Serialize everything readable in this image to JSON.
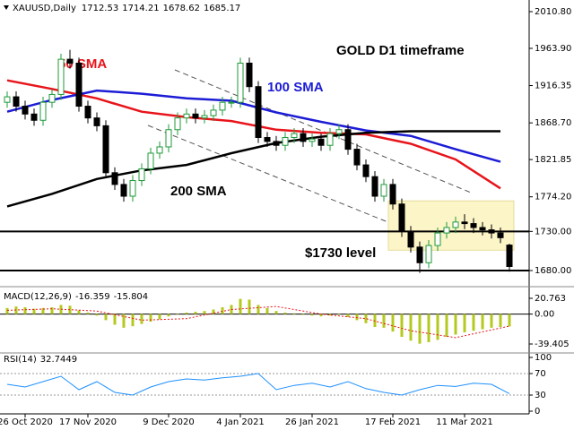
{
  "chart_data": [
    {
      "type": "candlestick",
      "symbol": "XAUUSD,Daily",
      "open": [
        1895,
        1902,
        1890,
        1880,
        1872,
        1895,
        1905,
        1950,
        1945,
        1890,
        1875,
        1865,
        1805,
        1790,
        1775,
        1795,
        1810,
        1830,
        1838,
        1860,
        1875,
        1880,
        1875,
        1878,
        1885,
        1895,
        1895,
        1945,
        1915,
        1850,
        1845,
        1840,
        1850,
        1855,
        1845,
        1848,
        1840,
        1855,
        1860,
        1835,
        1815,
        1800,
        1775,
        1790,
        1765,
        1730,
        1710,
        1690,
        1712,
        1728,
        1735,
        1742,
        1740,
        1735,
        1732,
        1728,
        1712.53
      ],
      "high": [
        1909,
        1909,
        1897,
        1887,
        1902,
        1912,
        1957,
        1962,
        1952,
        1897,
        1882,
        1872,
        1812,
        1797,
        1802,
        1817,
        1837,
        1845,
        1867,
        1882,
        1887,
        1887,
        1885,
        1892,
        1902,
        1902,
        1952,
        1952,
        1922,
        1857,
        1852,
        1857,
        1862,
        1862,
        1855,
        1855,
        1862,
        1867,
        1867,
        1842,
        1822,
        1807,
        1797,
        1797,
        1772,
        1737,
        1717,
        1719,
        1735,
        1742,
        1749,
        1752,
        1747,
        1742,
        1739,
        1735,
        1714.21
      ],
      "low": [
        1888,
        1883,
        1873,
        1865,
        1865,
        1888,
        1898,
        1938,
        1883,
        1868,
        1858,
        1798,
        1783,
        1768,
        1768,
        1788,
        1803,
        1823,
        1831,
        1853,
        1868,
        1868,
        1868,
        1871,
        1878,
        1888,
        1888,
        1908,
        1843,
        1838,
        1833,
        1833,
        1843,
        1838,
        1838,
        1833,
        1833,
        1848,
        1828,
        1808,
        1793,
        1768,
        1768,
        1758,
        1723,
        1703,
        1677,
        1683,
        1705,
        1721,
        1728,
        1733,
        1728,
        1725,
        1721,
        1715,
        1678.62
      ],
      "close": [
        1902,
        1890,
        1880,
        1872,
        1895,
        1905,
        1950,
        1945,
        1890,
        1875,
        1865,
        1805,
        1790,
        1775,
        1795,
        1810,
        1830,
        1838,
        1860,
        1875,
        1880,
        1875,
        1878,
        1885,
        1895,
        1895,
        1945,
        1915,
        1850,
        1845,
        1840,
        1850,
        1855,
        1845,
        1848,
        1840,
        1855,
        1860,
        1835,
        1815,
        1800,
        1775,
        1790,
        1765,
        1730,
        1710,
        1690,
        1712,
        1728,
        1735,
        1742,
        1740,
        1735,
        1732,
        1728,
        1722,
        1685.17
      ],
      "up_color": "#1f9a3a",
      "down_color": "#000000",
      "xlim": [
        -0.8,
        58.2
      ],
      "xticks": [
        {
          "value": 2,
          "label": "26 Oct 2020"
        },
        {
          "value": 9,
          "label": "17 Nov 2020"
        },
        {
          "value": 18,
          "label": "9 Dec 2020"
        },
        {
          "value": 26,
          "label": "4 Jan 2021"
        },
        {
          "value": 34,
          "label": "26 Jan 2021"
        },
        {
          "value": 43,
          "label": "17 Feb 2021"
        },
        {
          "value": 51,
          "label": "11 Mar 2021"
        }
      ],
      "ylim": [
        1661.7,
        2023.4
      ],
      "yticks": [
        {
          "value": 2010.8,
          "label": "2010.80"
        },
        {
          "value": 1963.9,
          "label": "1963.90"
        },
        1916.35,
        {
          "value": 1868.7,
          "label": "1868.70"
        },
        1821.85,
        {
          "value": 1774.2,
          "label": "1774.20"
        },
        {
          "value": 1730,
          "label": "1730.00"
        },
        {
          "value": 1680,
          "label": "1680.00"
        }
      ],
      "series": [
        {
          "name": "50 SMA",
          "color": "#e8141b",
          "x": [
            0,
            5,
            10,
            15,
            20,
            25,
            30,
            35,
            40,
            45,
            50,
            55
          ],
          "values": [
            1923,
            1912,
            1900,
            1883,
            1876,
            1871,
            1860,
            1856,
            1854,
            1842,
            1822,
            1785
          ]
        },
        {
          "name": "100 SMA",
          "color": "#1c1cd6",
          "x": [
            0,
            5,
            10,
            15,
            20,
            25,
            30,
            35,
            40,
            45,
            50,
            55
          ],
          "values": [
            1883,
            1898,
            1910,
            1906,
            1900,
            1897,
            1882,
            1870,
            1859,
            1852,
            1835,
            1819
          ]
        },
        {
          "name": "200 SMA",
          "color": "#000000",
          "x": [
            0,
            5,
            10,
            15,
            20,
            25,
            30,
            35,
            40,
            45,
            50,
            55
          ],
          "values": [
            1762,
            1778,
            1797,
            1808,
            1815,
            1830,
            1843,
            1851,
            1856,
            1858,
            1858,
            1858
          ]
        }
      ],
      "levels": [
        1730,
        1680
      ],
      "zone": {
        "low": 1706,
        "high": 1769,
        "from": 42.5,
        "to": 56.5,
        "color": "#fbf5c8"
      },
      "annotations": [
        "GOLD D1 timeframe",
        "$1730 level"
      ]
    },
    {
      "type": "bar",
      "title": "MACD(12,26,9)",
      "color": "#b5c81e",
      "values": [
        8,
        10,
        9,
        7,
        8,
        9,
        12,
        11,
        5,
        2,
        -2,
        -8,
        -14,
        -18,
        -16,
        -13,
        -10,
        -7,
        -3,
        0,
        2,
        3,
        4,
        6,
        9,
        12,
        20,
        19,
        12,
        8,
        4,
        2,
        1,
        -1,
        -2,
        -3,
        -2,
        -1,
        -4,
        -8,
        -12,
        -17,
        -18,
        -23,
        -30,
        -35,
        -39,
        -37,
        -34,
        -30,
        -27,
        -24,
        -22,
        -20,
        -18,
        -17,
        -16.359
      ],
      "signal": {
        "color": "#e8141b",
        "x": [
          0,
          5,
          10,
          15,
          20,
          25,
          30,
          35,
          40,
          45,
          50,
          56
        ],
        "values": [
          5,
          7,
          4,
          -8,
          -6,
          6,
          10,
          0,
          -6,
          -22,
          -31,
          -15.804
        ]
      },
      "ylim": [
        -48.84,
        27.84
      ],
      "yticks": [
        20.763,
        {
          "value": 0,
          "label": "0.00"
        },
        -39.405
      ]
    },
    {
      "type": "line",
      "title": "RSI(14)",
      "color": "#1e90ff",
      "x": [
        0,
        2,
        4,
        6,
        8,
        10,
        12,
        14,
        16,
        18,
        20,
        22,
        24,
        26,
        28,
        30,
        32,
        34,
        36,
        38,
        40,
        42,
        44,
        46,
        48,
        50,
        52,
        54,
        56
      ],
      "values": [
        50,
        45,
        55,
        65,
        40,
        55,
        35,
        30,
        45,
        55,
        60,
        58,
        62,
        65,
        70,
        40,
        48,
        52,
        45,
        55,
        42,
        35,
        30,
        40,
        48,
        46,
        52,
        50,
        32.7449
      ],
      "levels": [
        70,
        30
      ],
      "ylim": [
        -5,
        105
      ],
      "yticks": [
        100,
        70,
        30,
        0
      ]
    }
  ]
}
